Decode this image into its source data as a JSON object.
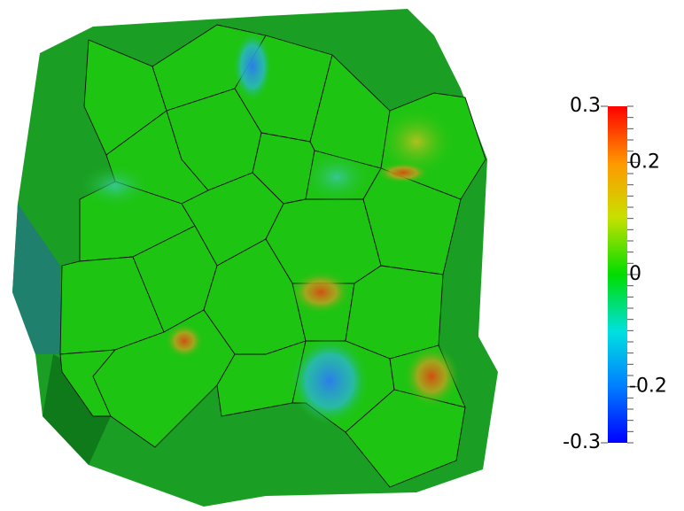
{
  "colorbar": {
    "min": -0.3,
    "max": 0.3,
    "ticks": [
      0.3,
      0.2,
      0,
      -0.2,
      -0.3
    ]
  }
}
